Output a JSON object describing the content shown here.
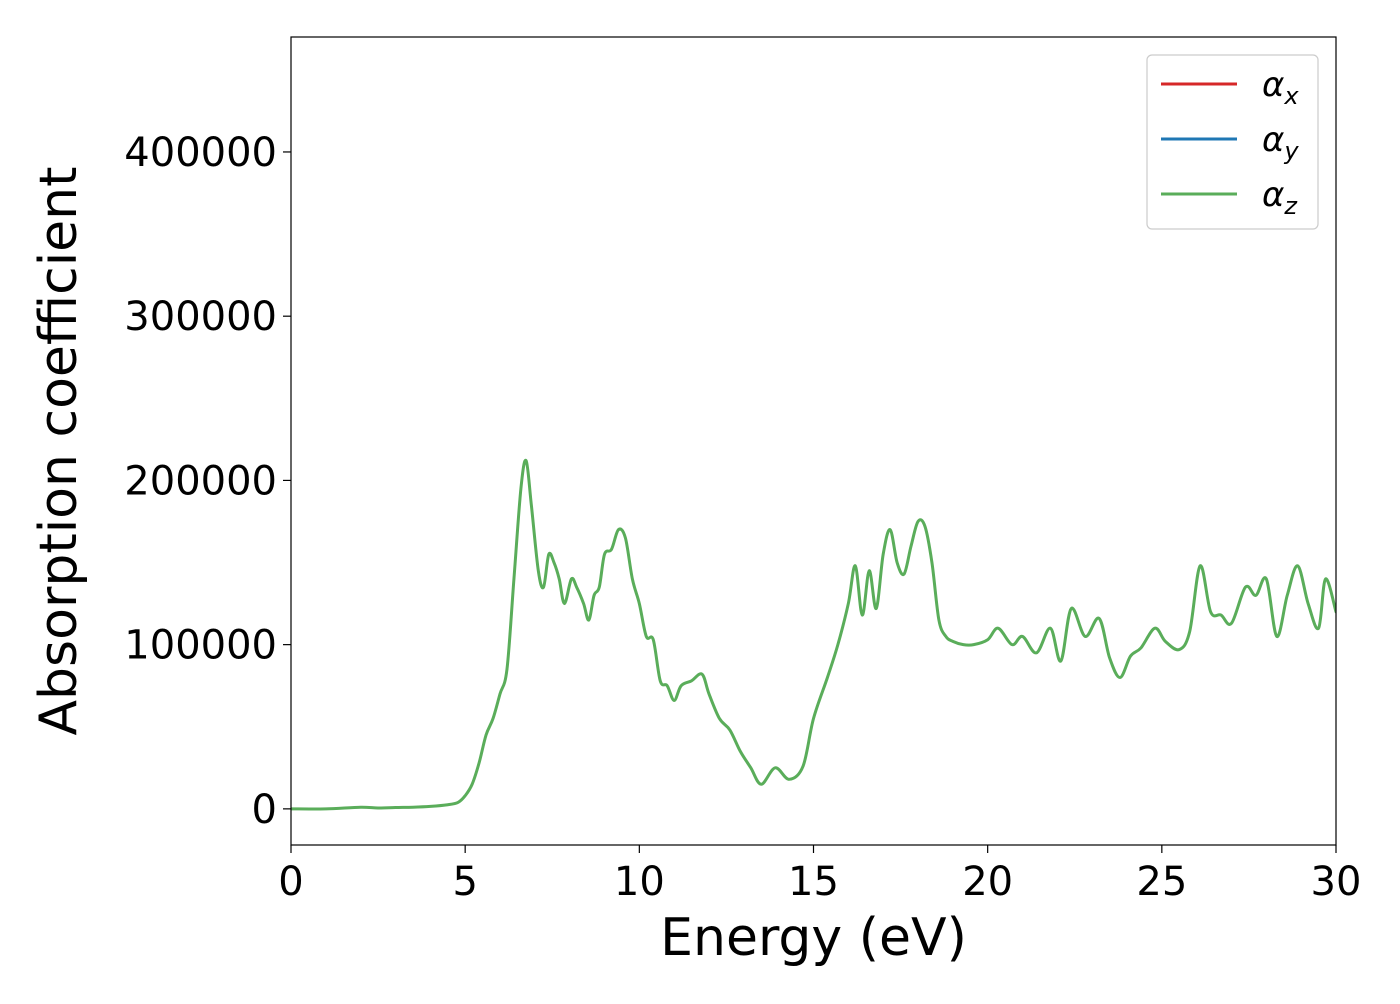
{
  "chart_data": {
    "type": "line",
    "xlabel": "Energy (eV)",
    "ylabel": "Absorption coefficient",
    "xlim": [
      0,
      30
    ],
    "ylim": [
      -22000,
      470000
    ],
    "xticks": [
      0,
      5,
      10,
      15,
      20,
      25,
      30
    ],
    "yticks": [
      0,
      100000,
      200000,
      300000,
      400000
    ],
    "grid": false,
    "legend_position": "top-right",
    "series": [
      {
        "name": "αx",
        "symbol": "α",
        "subscript": "x",
        "color": "#d62728",
        "x": [
          0,
          1,
          2,
          2.5,
          3,
          3.5,
          4,
          4.5,
          4.8,
          5.0,
          5.2,
          5.4,
          5.6,
          5.8,
          6.0,
          6.2,
          6.4,
          6.6,
          6.75,
          6.9,
          7.1,
          7.25,
          7.4,
          7.55,
          7.7,
          7.85,
          8.05,
          8.2,
          8.4,
          8.55,
          8.7,
          8.85,
          9.0,
          9.2,
          9.4,
          9.6,
          9.8,
          10.0,
          10.2,
          10.4,
          10.6,
          10.8,
          11.0,
          11.2,
          11.5,
          11.8,
          12.0,
          12.3,
          12.6,
          12.9,
          13.2,
          13.5,
          13.9,
          14.3,
          14.7,
          15.0,
          15.4,
          15.7,
          16.0,
          16.2,
          16.4,
          16.6,
          16.8,
          17.0,
          17.2,
          17.4,
          17.6,
          17.8,
          18.0,
          18.2,
          18.4,
          18.6,
          18.8,
          19.0,
          19.3,
          19.6,
          20.0,
          20.3,
          20.7,
          21.0,
          21.4,
          21.8,
          22.1,
          22.4,
          22.8,
          23.2,
          23.5,
          23.8,
          24.1,
          24.4,
          24.8,
          25.1,
          25.5,
          25.8,
          26.1,
          26.4,
          26.7,
          27.0,
          27.4,
          27.7,
          28.0,
          28.3,
          28.6,
          28.9,
          29.2,
          29.5,
          29.7,
          30.0
        ],
        "y": [
          0,
          0,
          1000,
          500,
          800,
          1000,
          1500,
          2500,
          4000,
          8000,
          15000,
          28000,
          45000,
          55000,
          70000,
          85000,
          140000,
          195000,
          212000,
          185000,
          145000,
          135000,
          155000,
          150000,
          140000,
          125000,
          140000,
          135000,
          125000,
          115000,
          130000,
          135000,
          155000,
          158000,
          170000,
          165000,
          140000,
          125000,
          105000,
          103000,
          78000,
          75000,
          66000,
          75000,
          78000,
          82000,
          70000,
          55000,
          48000,
          35000,
          25000,
          15000,
          25000,
          18000,
          26000,
          55000,
          80000,
          100000,
          125000,
          148000,
          118000,
          145000,
          122000,
          155000,
          170000,
          150000,
          143000,
          160000,
          175000,
          172000,
          150000,
          115000,
          105000,
          102000,
          100000,
          100000,
          103000,
          110000,
          100000,
          105000,
          95000,
          110000,
          90000,
          122000,
          105000,
          116000,
          92000,
          80000,
          93000,
          98000,
          110000,
          102000,
          97000,
          108000,
          148000,
          120000,
          118000,
          113000,
          135000,
          130000,
          140000,
          105000,
          130000,
          148000,
          125000,
          110000,
          140000,
          120000
        ],
        "visible": false
      },
      {
        "name": "αy",
        "symbol": "α",
        "subscript": "y",
        "color": "#1f77b4",
        "x": [
          0,
          1,
          2,
          2.5,
          3,
          3.5,
          4,
          4.5,
          4.8,
          5.0,
          5.2,
          5.4,
          5.6,
          5.8,
          6.0,
          6.2,
          6.4,
          6.6,
          6.75,
          6.9,
          7.1,
          7.25,
          7.4,
          7.55,
          7.7,
          7.85,
          8.05,
          8.2,
          8.4,
          8.55,
          8.7,
          8.85,
          9.0,
          9.2,
          9.4,
          9.6,
          9.8,
          10.0,
          10.2,
          10.4,
          10.6,
          10.8,
          11.0,
          11.2,
          11.5,
          11.8,
          12.0,
          12.3,
          12.6,
          12.9,
          13.2,
          13.5,
          13.9,
          14.3,
          14.7,
          15.0,
          15.4,
          15.7,
          16.0,
          16.2,
          16.4,
          16.6,
          16.8,
          17.0,
          17.2,
          17.4,
          17.6,
          17.8,
          18.0,
          18.2,
          18.4,
          18.6,
          18.8,
          19.0,
          19.3,
          19.6,
          20.0,
          20.3,
          20.7,
          21.0,
          21.4,
          21.8,
          22.1,
          22.4,
          22.8,
          23.2,
          23.5,
          23.8,
          24.1,
          24.4,
          24.8,
          25.1,
          25.5,
          25.8,
          26.1,
          26.4,
          26.7,
          27.0,
          27.4,
          27.7,
          28.0,
          28.3,
          28.6,
          28.9,
          29.2,
          29.5,
          29.7,
          30.0
        ],
        "y": [
          0,
          0,
          1000,
          500,
          800,
          1000,
          1500,
          2500,
          4000,
          8000,
          15000,
          28000,
          45000,
          55000,
          70000,
          85000,
          140000,
          195000,
          212000,
          185000,
          145000,
          135000,
          155000,
          150000,
          140000,
          125000,
          140000,
          135000,
          125000,
          115000,
          130000,
          135000,
          155000,
          158000,
          170000,
          165000,
          140000,
          125000,
          105000,
          103000,
          78000,
          75000,
          66000,
          75000,
          78000,
          82000,
          70000,
          55000,
          48000,
          35000,
          25000,
          15000,
          25000,
          18000,
          26000,
          55000,
          80000,
          100000,
          125000,
          148000,
          118000,
          145000,
          122000,
          155000,
          170000,
          150000,
          143000,
          160000,
          175000,
          172000,
          150000,
          115000,
          105000,
          102000,
          100000,
          100000,
          103000,
          110000,
          100000,
          105000,
          95000,
          110000,
          90000,
          122000,
          105000,
          116000,
          92000,
          80000,
          93000,
          98000,
          110000,
          102000,
          97000,
          108000,
          148000,
          120000,
          118000,
          113000,
          135000,
          130000,
          140000,
          105000,
          130000,
          148000,
          125000,
          110000,
          140000,
          120000
        ],
        "visible": false
      },
      {
        "name": "αz",
        "symbol": "α",
        "subscript": "z",
        "color": "#5aad5a",
        "x": [
          0,
          1,
          2,
          2.5,
          3,
          3.5,
          4,
          4.5,
          4.8,
          5.0,
          5.2,
          5.4,
          5.6,
          5.8,
          6.0,
          6.2,
          6.4,
          6.6,
          6.75,
          6.9,
          7.1,
          7.25,
          7.4,
          7.55,
          7.7,
          7.85,
          8.05,
          8.2,
          8.4,
          8.55,
          8.7,
          8.85,
          9.0,
          9.2,
          9.4,
          9.6,
          9.8,
          10.0,
          10.2,
          10.4,
          10.6,
          10.8,
          11.0,
          11.2,
          11.5,
          11.8,
          12.0,
          12.3,
          12.6,
          12.9,
          13.2,
          13.5,
          13.9,
          14.3,
          14.7,
          15.0,
          15.4,
          15.7,
          16.0,
          16.2,
          16.4,
          16.6,
          16.8,
          17.0,
          17.2,
          17.4,
          17.6,
          17.8,
          18.0,
          18.2,
          18.4,
          18.6,
          18.8,
          19.0,
          19.3,
          19.6,
          20.0,
          20.3,
          20.7,
          21.0,
          21.4,
          21.8,
          22.1,
          22.4,
          22.8,
          23.2,
          23.5,
          23.8,
          24.1,
          24.4,
          24.8,
          25.1,
          25.5,
          25.8,
          26.1,
          26.4,
          26.7,
          27.0,
          27.4,
          27.7,
          28.0,
          28.3,
          28.6,
          28.9,
          29.2,
          29.5,
          29.7,
          30.0
        ],
        "y": [
          0,
          0,
          1000,
          500,
          800,
          1000,
          1500,
          2500,
          4000,
          8000,
          15000,
          28000,
          45000,
          55000,
          70000,
          85000,
          140000,
          195000,
          212000,
          185000,
          145000,
          135000,
          155000,
          150000,
          140000,
          125000,
          140000,
          135000,
          125000,
          115000,
          130000,
          135000,
          155000,
          158000,
          170000,
          165000,
          140000,
          125000,
          105000,
          103000,
          78000,
          75000,
          66000,
          75000,
          78000,
          82000,
          70000,
          55000,
          48000,
          35000,
          25000,
          15000,
          25000,
          18000,
          26000,
          55000,
          80000,
          100000,
          125000,
          148000,
          118000,
          145000,
          122000,
          155000,
          170000,
          150000,
          143000,
          160000,
          175000,
          172000,
          150000,
          115000,
          105000,
          102000,
          100000,
          100000,
          103000,
          110000,
          100000,
          105000,
          95000,
          110000,
          90000,
          122000,
          105000,
          116000,
          92000,
          80000,
          93000,
          98000,
          110000,
          102000,
          97000,
          108000,
          148000,
          120000,
          118000,
          113000,
          135000,
          130000,
          140000,
          105000,
          130000,
          148000,
          125000,
          110000,
          140000,
          120000
        ],
        "visible": true
      }
    ]
  }
}
